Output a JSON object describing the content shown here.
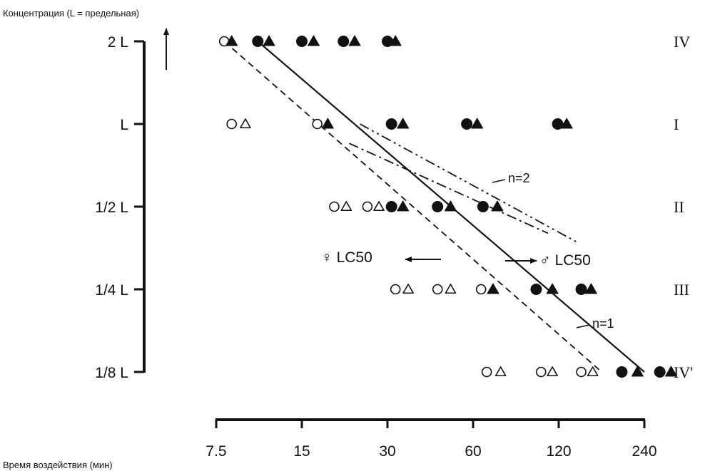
{
  "chart_data": {
    "type": "scatter",
    "ylabel": "Концентрация (L = предельная)",
    "xlabel": "Время воздействия (мин)",
    "x_scale": "log",
    "xlim": [
      7.5,
      240
    ],
    "x_ticks": [
      "7.5",
      "15",
      "30",
      "60",
      "120",
      "240"
    ],
    "y_ticks": [
      "2 L",
      "L",
      "1/2 L",
      "1/4 L",
      "1/8 L"
    ],
    "row_labels": [
      "IV",
      "I",
      "II",
      "III",
      "IV'"
    ],
    "lines": [
      {
        "label": "n=1",
        "style": "solid",
        "points": [
          [
            10.5,
            2
          ],
          [
            240,
            0.125
          ]
        ]
      },
      {
        "label": "",
        "style": "dashed",
        "points": [
          [
            8,
            2
          ],
          [
            170,
            0.125
          ]
        ]
      },
      {
        "label": "n=2",
        "style": "dash-dot-dot",
        "points": [
          [
            24,
            1
          ],
          [
            140,
            0.37
          ]
        ]
      },
      {
        "label": "",
        "style": "dash-dot",
        "points": [
          [
            22,
            0.85
          ],
          [
            110,
            0.4
          ]
        ]
      }
    ],
    "annotations": [
      {
        "text": "♀ LC50",
        "arrow": "left"
      },
      {
        "text": "♂ LC50",
        "arrow": "right"
      },
      {
        "text": "n=2"
      },
      {
        "text": "n=1"
      }
    ],
    "series": [
      {
        "concentration": "2 L",
        "open_circle": [
          8
        ],
        "open_triangle": [],
        "filled_circle": [
          10.5,
          15,
          21,
          30
        ],
        "filled_triangle": [
          8.5,
          11.5,
          16.5,
          23,
          32
        ]
      },
      {
        "concentration": "L",
        "open_circle": [
          8.5,
          17
        ],
        "open_triangle": [
          9.5
        ],
        "filled_circle": [
          31,
          57,
          119
        ],
        "filled_triangle": [
          18.5,
          34,
          62,
          128
        ]
      },
      {
        "concentration": "1/2 L",
        "open_circle": [
          19.5,
          25.5
        ],
        "open_triangle": [
          21.5,
          28
        ],
        "filled_circle": [
          31,
          45,
          65
        ],
        "filled_triangle": [
          34,
          50,
          73
        ]
      },
      {
        "concentration": "1/4 L",
        "open_circle": [
          32,
          45,
          64
        ],
        "open_triangle": [
          35.5,
          50
        ],
        "filled_circle": [
          100,
          144
        ],
        "filled_triangle": [
          70.5,
          114,
          156
        ]
      },
      {
        "concentration": "1/8 L",
        "open_circle": [
          67,
          104,
          144
        ],
        "open_triangle": [
          75,
          114,
          158
        ],
        "filled_circle": [
          200,
          272
        ],
        "filled_triangle": [
          227,
          298
        ]
      }
    ]
  }
}
